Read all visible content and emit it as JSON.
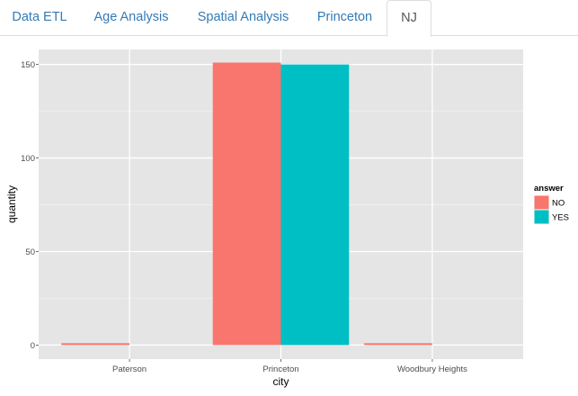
{
  "tabs": [
    {
      "label": "Data ETL",
      "active": false
    },
    {
      "label": "Age Analysis",
      "active": false
    },
    {
      "label": "Spatial Analysis",
      "active": false
    },
    {
      "label": "Princeton",
      "active": false
    },
    {
      "label": "NJ",
      "active": true
    }
  ],
  "colors": {
    "panel_bg": "#e5e5e5",
    "grid_major": "#ffffff",
    "grid_minor": "#f2f2f2",
    "no": "#f8766d",
    "yes": "#00bfc4",
    "tab_link": "#337ab7",
    "tab_active": "#555555"
  },
  "chart_data": {
    "type": "bar",
    "categories": [
      "Paterson",
      "Princeton",
      "Woodbury Heights"
    ],
    "series": [
      {
        "name": "NO",
        "values": [
          1,
          151,
          1
        ]
      },
      {
        "name": "YES",
        "values": [
          0,
          150,
          0
        ]
      }
    ],
    "xlabel": "city",
    "ylabel": "quantity",
    "yticks": [
      0,
      50,
      100,
      150
    ],
    "ylim": [
      -7.5,
      158
    ],
    "legend_title": "answer",
    "legend_position": "right",
    "grid": true
  }
}
